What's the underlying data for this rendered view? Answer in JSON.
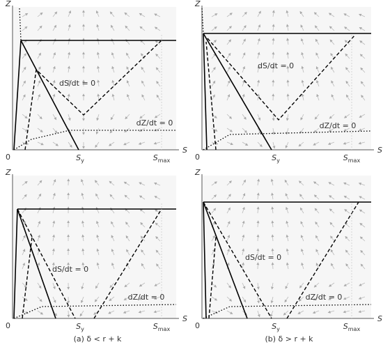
{
  "panels": [
    {
      "y_axis": "Z",
      "x_axis": "S",
      "origin": "0",
      "x_ticks": [
        {
          "base": "S",
          "sub": "y"
        },
        {
          "base": "S",
          "sub": "max"
        }
      ],
      "curves": [
        "dS/dt = 0",
        "dZ/dt = 0"
      ]
    },
    {
      "y_axis": "Z",
      "x_axis": "S",
      "origin": "0",
      "x_ticks": [
        {
          "base": "S",
          "sub": "y"
        },
        {
          "base": "S",
          "sub": "max"
        }
      ],
      "curves": [
        "dS/dt = 0",
        "dZ/dt = 0"
      ]
    },
    {
      "y_axis": "Z",
      "x_axis": "S",
      "origin": "0",
      "x_ticks": [
        {
          "base": "S",
          "sub": "y"
        },
        {
          "base": "S",
          "sub": "max"
        }
      ],
      "curves": [
        "dS/dt = 0",
        "dZ/dt = 0"
      ]
    },
    {
      "y_axis": "Z",
      "x_axis": "S",
      "origin": "0",
      "x_ticks": [
        {
          "base": "S",
          "sub": "y"
        },
        {
          "base": "S",
          "sub": "max"
        }
      ],
      "curves": [
        "dS/dt = 0",
        "dZ/dt = 0"
      ]
    }
  ],
  "captions": [
    "(a) δ < r + k",
    "(b) δ > r + k"
  ]
}
